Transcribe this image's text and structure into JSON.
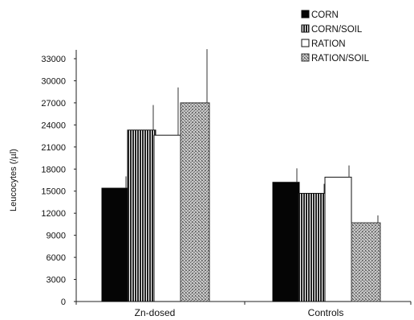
{
  "chart_data": {
    "type": "bar",
    "categories": [
      "Zn-dosed",
      "Controls"
    ],
    "series": [
      {
        "name": "CORN",
        "values": [
          15400,
          16200
        ],
        "errors": [
          1600,
          1900
        ],
        "fill": "solid-black"
      },
      {
        "name": "CORN/SOIL",
        "values": [
          23300,
          14700
        ],
        "errors": [
          3400,
          1300
        ],
        "fill": "vertical-stripes"
      },
      {
        "name": "RATION",
        "values": [
          22600,
          16900
        ],
        "errors": [
          6500,
          1600
        ],
        "fill": "white"
      },
      {
        "name": "RATION/SOIL",
        "values": [
          27000,
          10700
        ],
        "errors": [
          7300,
          1000
        ],
        "fill": "gray-stipple"
      }
    ],
    "ylabel": "Leucocytes (/µl)",
    "xlabel": "",
    "title": "",
    "ylim": [
      0,
      33000
    ],
    "yticks": [
      0,
      3000,
      6000,
      9000,
      12000,
      15000,
      18000,
      21000,
      24000,
      27000,
      30000,
      33000
    ],
    "grid": false,
    "legend_position": "top-right"
  }
}
